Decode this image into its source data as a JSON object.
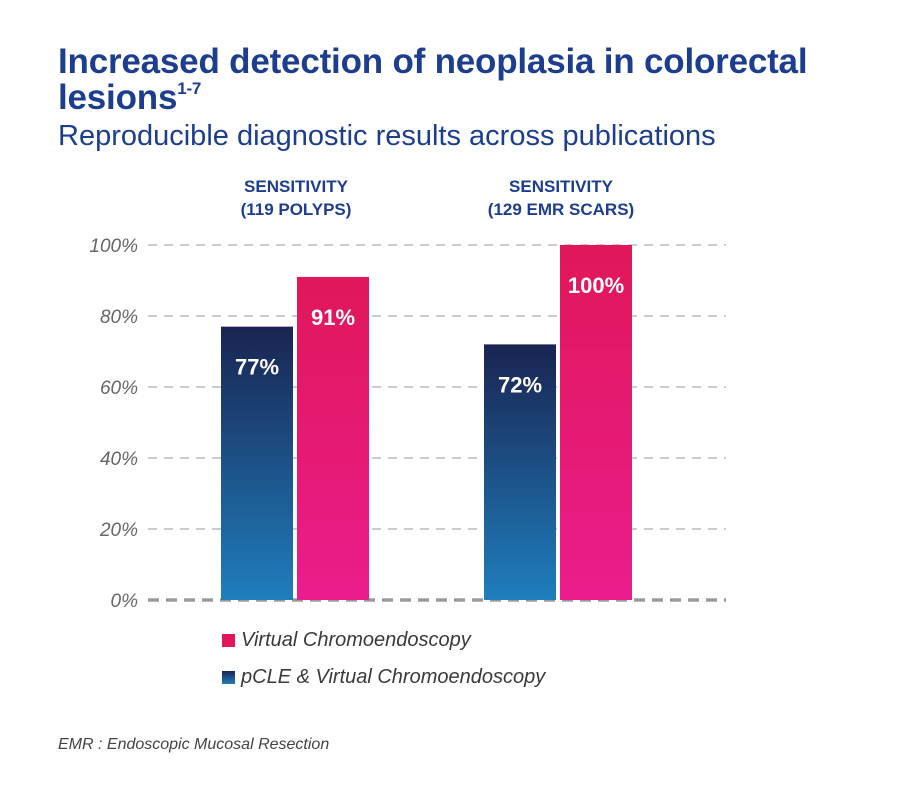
{
  "title_main": "Increased detection of neoplasia in colorectal lesions",
  "title_sup": "1-7",
  "subtitle": "Reproducible diagnostic results across publications",
  "footnote": "EMR : Endoscopic Mucosal Resection",
  "legend": [
    {
      "label": "Virtual Chromoendoscopy"
    },
    {
      "label": "pCLE & Virtual Chromoendoscopy"
    }
  ],
  "colors": {
    "title": "#1d3e8f",
    "pink_top": "#e0175a",
    "pink_bottom": "#ea1d8c",
    "navy_top": "#1a2452",
    "navy_bottom": "#1f7ebd",
    "grid": "#9a9a9a",
    "tick": "#666666"
  },
  "chart_data": {
    "type": "bar",
    "categories": [
      "SENSITIVITY\n(119 POLYPS)",
      "SENSITIVITY\n(129 EMR SCARS)"
    ],
    "series": [
      {
        "name": "pCLE & Virtual Chromoendoscopy",
        "values": [
          77,
          72
        ],
        "labels": [
          "77%",
          "72%"
        ]
      },
      {
        "name": "Virtual Chromoendoscopy",
        "values": [
          91,
          100
        ],
        "labels": [
          "91%",
          "100%"
        ]
      }
    ],
    "yticks": [
      "0%",
      "20%",
      "40%",
      "60%",
      "80%",
      "100%"
    ],
    "ylim": [
      0,
      100
    ],
    "grid": true,
    "legend_position": "bottom-left"
  }
}
